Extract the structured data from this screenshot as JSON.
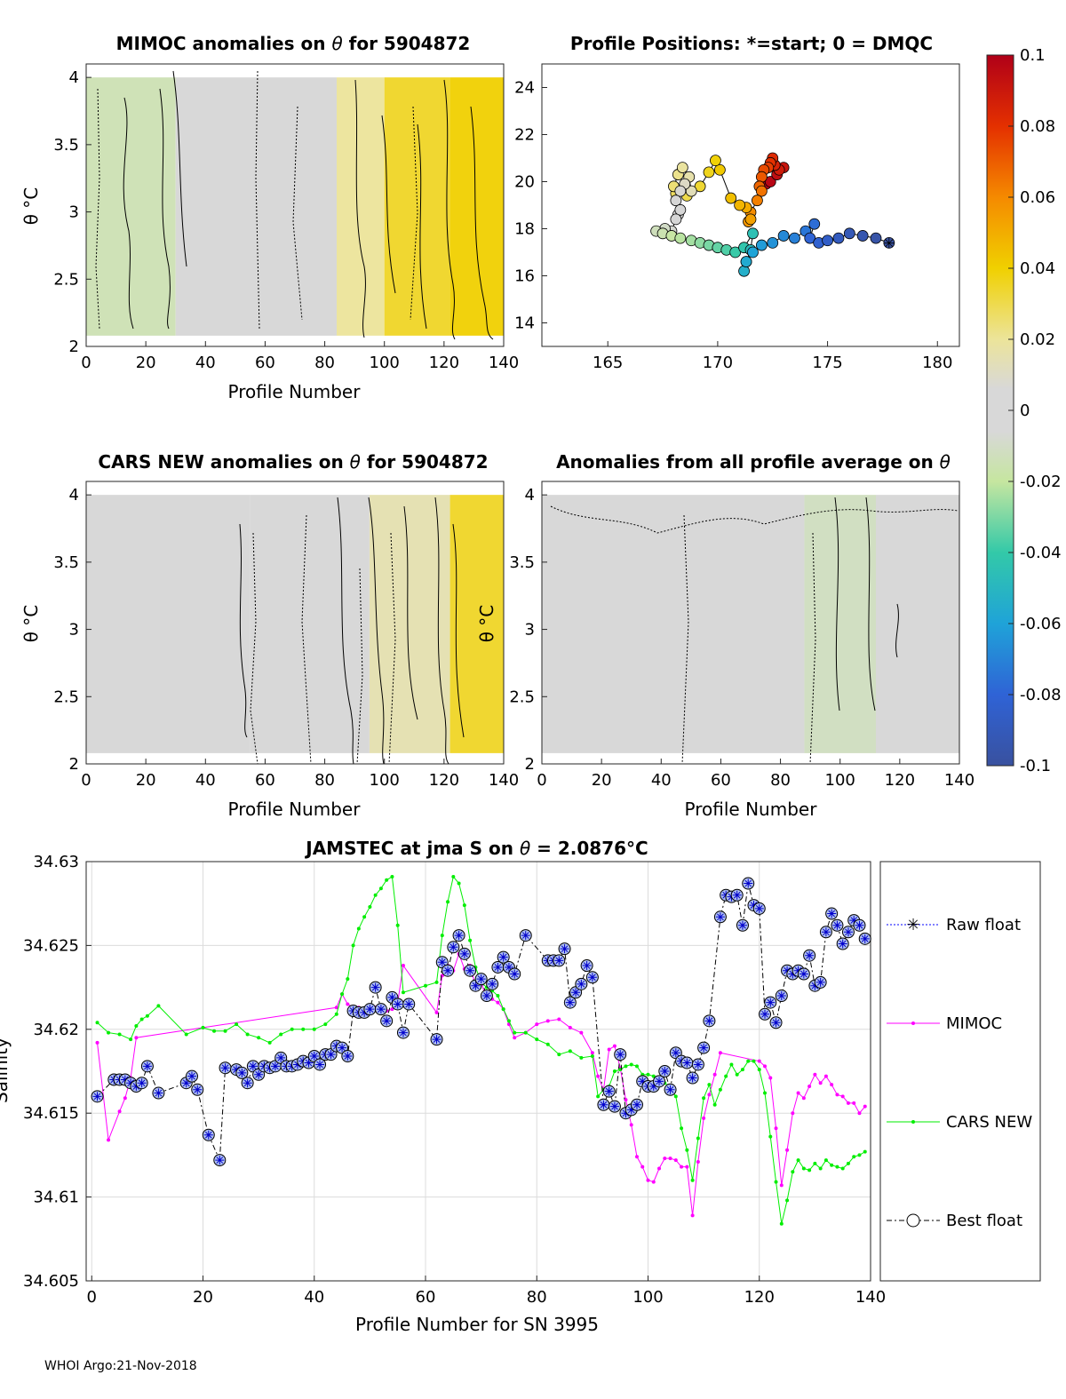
{
  "page": {
    "footer": "WHOI Argo:21-Nov-2018"
  },
  "panels": {
    "mimoc": {
      "title_pre": "MIMOC anomalies on",
      "title_sym": "θ",
      "title_post": "for 5904872",
      "ylabel": "θ °C",
      "xlabel": "Profile Number"
    },
    "positions": {
      "title": "Profile Positions: *=start; 0 = DMQC"
    },
    "cars": {
      "title_pre": "CARS NEW anomalies on",
      "title_sym": "θ",
      "title_post": "for 5904872",
      "ylabel": "θ °C",
      "xlabel": "Profile Number"
    },
    "allprof": {
      "title_pre": "Anomalies from all profile average on",
      "title_sym": "θ",
      "ylabel": "θ °C",
      "xlabel": "Profile Number"
    },
    "salinity": {
      "title_pre": "JAMSTEC at jma S on",
      "title_sym": "θ",
      "title_post": "= 2.0876°C",
      "ylabel": "Salinity",
      "xlabel": "Profile Number for SN 3995"
    }
  },
  "colorbar": {
    "ticks": [
      "0.1",
      "0.08",
      "0.06",
      "0.04",
      "0.02",
      "0",
      "-0.02",
      "-0.04",
      "-0.06",
      "-0.08",
      "-0.1"
    ],
    "min": -0.1,
    "max": 0.1
  },
  "legend": {
    "raw": "Raw float",
    "mimoc": "MIMOC",
    "cars": "CARS NEW",
    "best": "Best float"
  },
  "colors": {
    "raw": "#0000ff",
    "mimoc": "#ff00ff",
    "cars": "#00ee00",
    "best": "#000000",
    "anom_bg": "#d6d6d6"
  },
  "chart_data": [
    {
      "type": "heatmap",
      "title": "MIMOC anomalies on θ for 5904872",
      "xlabel": "Profile Number",
      "ylabel": "θ °C",
      "xlim": [
        0,
        140
      ],
      "ylim": [
        2,
        4.1
      ],
      "xticks": [
        0,
        20,
        40,
        60,
        80,
        100,
        120,
        140
      ],
      "yticks": [
        2,
        2.5,
        3,
        3.5,
        4
      ],
      "bands": [
        {
          "x": [
            0,
            30
          ],
          "anomaly": -0.015
        },
        {
          "x": [
            30,
            84
          ],
          "anomaly": 0.0
        },
        {
          "x": [
            84,
            100
          ],
          "anomaly": 0.02
        },
        {
          "x": [
            100,
            122
          ],
          "anomaly": 0.035
        },
        {
          "x": [
            122,
            140
          ],
          "anomaly": 0.04
        }
      ]
    },
    {
      "type": "scatter",
      "title": "Profile Positions: *=start; 0 = DMQC",
      "xlim": [
        162,
        181
      ],
      "ylim": [
        13,
        25
      ],
      "xticks": [
        165,
        170,
        175,
        180
      ],
      "yticks": [
        14,
        16,
        18,
        20,
        22,
        24
      ],
      "lon": [
        177.8,
        177.2,
        176.6,
        176.0,
        175.5,
        175.0,
        174.6,
        174.2,
        174.4,
        174.0,
        173.5,
        173.0,
        172.5,
        172.0,
        171.6,
        171.3,
        171.2,
        171.3,
        171.5,
        171.6,
        171.2,
        170.8,
        170.4,
        170.0,
        169.6,
        169.2,
        168.8,
        168.3,
        167.9,
        167.5,
        167.2,
        167.6,
        167.9,
        168.1,
        168.3,
        168.2,
        168.1,
        168.3,
        168.5,
        168.8,
        168.7,
        168.4,
        168.2,
        168.0,
        168.1,
        168.6,
        169.2,
        169.6,
        169.9,
        170.1,
        170.6,
        171.0,
        171.3,
        171.5,
        171.4,
        171.5,
        171.8,
        172.0,
        171.9,
        172.0,
        172.1,
        172.3,
        172.4,
        172.5,
        172.6,
        172.8,
        173.0,
        172.7,
        172.4,
        172.2
      ],
      "lat": [
        17.4,
        17.6,
        17.7,
        17.8,
        17.6,
        17.5,
        17.4,
        17.6,
        18.2,
        17.9,
        17.6,
        17.7,
        17.4,
        17.3,
        17.0,
        16.6,
        16.2,
        16.6,
        17.1,
        17.8,
        17.2,
        17.0,
        17.1,
        17.2,
        17.3,
        17.4,
        17.5,
        17.6,
        17.7,
        17.8,
        17.9,
        18.0,
        17.9,
        18.4,
        18.8,
        18.6,
        19.2,
        19.6,
        19.9,
        19.6,
        20.2,
        20.6,
        20.3,
        19.8,
        19.5,
        19.4,
        19.8,
        20.4,
        20.9,
        20.5,
        19.3,
        19.0,
        18.9,
        18.4,
        18.3,
        18.7,
        19.2,
        19.6,
        19.8,
        20.2,
        20.5,
        20.6,
        20.8,
        21.0,
        20.7,
        20.5,
        20.6,
        20.3,
        20.0,
        19.9
      ]
    },
    {
      "type": "heatmap",
      "title": "CARS NEW anomalies on θ for 5904872",
      "xlabel": "Profile Number",
      "ylabel": "θ °C",
      "xlim": [
        0,
        140
      ],
      "ylim": [
        2,
        4.1
      ],
      "xticks": [
        0,
        20,
        40,
        60,
        80,
        100,
        120,
        140
      ],
      "yticks": [
        2,
        2.5,
        3,
        3.5,
        4
      ],
      "bands": [
        {
          "x": [
            0,
            55
          ],
          "anomaly": -0.005
        },
        {
          "x": [
            55,
            95
          ],
          "anomaly": 0.0
        },
        {
          "x": [
            95,
            122
          ],
          "anomaly": 0.015
        },
        {
          "x": [
            122,
            140
          ],
          "anomaly": 0.035
        }
      ]
    },
    {
      "type": "heatmap",
      "title": "Anomalies from all profile average on θ",
      "xlabel": "Profile Number",
      "ylabel": "θ °C",
      "xlim": [
        0,
        140
      ],
      "ylim": [
        2,
        4.1
      ],
      "xticks": [
        0,
        20,
        40,
        60,
        80,
        100,
        120,
        140
      ],
      "yticks": [
        2,
        2.5,
        3,
        3.5,
        4
      ],
      "bands": [
        {
          "x": [
            0,
            88
          ],
          "anomaly": 0.0
        },
        {
          "x": [
            88,
            112
          ],
          "anomaly": -0.012
        },
        {
          "x": [
            112,
            140
          ],
          "anomaly": 0.0
        }
      ]
    },
    {
      "type": "line",
      "title": "JAMSTEC at jma S on θ = 2.0876°C",
      "xlabel": "Profile Number for SN 3995",
      "ylabel": "Salinity",
      "xlim": [
        -1,
        140
      ],
      "ylim": [
        34.605,
        34.63
      ],
      "xticks": [
        0,
        20,
        40,
        60,
        80,
        100,
        120,
        140
      ],
      "yticks": [
        34.605,
        34.61,
        34.615,
        34.62,
        34.625,
        34.63
      ],
      "ytick_labels": [
        "34.605",
        "34.61",
        "34.615",
        "34.62",
        "34.625",
        "34.63"
      ],
      "series": [
        {
          "name": "Best float",
          "x": [
            1,
            4,
            5,
            6,
            7,
            8,
            9,
            10,
            12,
            17,
            18,
            19,
            21,
            23,
            24,
            26,
            27,
            28,
            29,
            30,
            31,
            32,
            33,
            34,
            35,
            36,
            37,
            38,
            39,
            40,
            41,
            42,
            43,
            44,
            45,
            46,
            47,
            48,
            49,
            50,
            51,
            52,
            53,
            54,
            55,
            56,
            57,
            62,
            63,
            64,
            65,
            66,
            67,
            68,
            69,
            70,
            71,
            72,
            73,
            74,
            75,
            76,
            78,
            82,
            83,
            84,
            85,
            86,
            87,
            88,
            89,
            90,
            92,
            93,
            94,
            95,
            96,
            97,
            98,
            99,
            100,
            101,
            102,
            103,
            104,
            105,
            106,
            107,
            108,
            109,
            110,
            111,
            113,
            114,
            115,
            116,
            117,
            118,
            119,
            120,
            121,
            122,
            123,
            124,
            125,
            126,
            127,
            128,
            129,
            130,
            131,
            132,
            133,
            134,
            135,
            136,
            137,
            138,
            139
          ],
          "y": [
            34.616,
            34.617,
            34.617,
            34.617,
            34.6168,
            34.6166,
            34.6168,
            34.6178,
            34.6162,
            34.6168,
            34.6172,
            34.6164,
            34.6137,
            34.6122,
            34.6177,
            34.6176,
            34.6174,
            34.6168,
            34.6178,
            34.6173,
            34.6178,
            34.6177,
            34.6178,
            34.6183,
            34.6178,
            34.6178,
            34.6179,
            34.6181,
            34.618,
            34.6184,
            34.6179,
            34.6185,
            34.6185,
            34.619,
            34.6189,
            34.6184,
            34.6211,
            34.621,
            34.621,
            34.6212,
            34.6225,
            34.6212,
            34.6205,
            34.6219,
            34.6215,
            34.6198,
            34.6215,
            34.6194,
            34.624,
            34.6235,
            34.6249,
            34.6256,
            34.6245,
            34.6235,
            34.6226,
            34.623,
            34.622,
            34.6227,
            34.6237,
            34.6243,
            34.6237,
            34.6233,
            34.6256,
            34.6241,
            34.6241,
            34.6241,
            34.6248,
            34.6216,
            34.6222,
            34.6227,
            34.6238,
            34.6231,
            34.6155,
            34.6163,
            34.6154,
            34.6185,
            34.615,
            34.6152,
            34.6155,
            34.6169,
            34.6166,
            34.6166,
            34.6169,
            34.6175,
            34.6164,
            34.6186,
            34.6181,
            34.618,
            34.6171,
            34.6179,
            34.6189,
            34.6205,
            34.6267,
            34.628,
            34.6279,
            34.628,
            34.6262,
            34.6287,
            34.6274,
            34.6272,
            34.6209,
            34.6216,
            34.6204,
            34.622,
            34.6235,
            34.6233,
            34.6235,
            34.6233,
            34.6244,
            34.6226,
            34.6228,
            34.6258,
            34.6269,
            34.6262,
            34.6251,
            34.6258,
            34.6265,
            34.6262,
            34.6254
          ]
        },
        {
          "name": "MIMOC",
          "x": [
            1,
            3,
            5,
            6,
            7,
            8,
            44,
            45,
            46,
            47,
            48,
            49,
            50,
            51,
            52,
            53,
            54,
            55,
            56,
            62,
            63,
            64,
            65,
            66,
            67,
            68,
            69,
            70,
            71,
            72,
            73,
            74,
            75,
            76,
            78,
            80,
            82,
            84,
            86,
            88,
            90,
            91,
            92,
            93,
            94,
            95,
            96,
            97,
            98,
            99,
            100,
            101,
            102,
            103,
            104,
            105,
            106,
            107,
            108,
            109,
            110,
            111,
            112,
            113,
            120,
            121,
            122,
            123,
            124,
            125,
            126,
            127,
            128,
            129,
            130,
            131,
            132,
            133,
            134,
            135,
            136,
            137,
            138,
            139
          ],
          "y": [
            34.6192,
            34.6134,
            34.6151,
            34.6159,
            34.6171,
            34.6195,
            34.6213,
            34.6221,
            34.6215,
            34.6213,
            34.6213,
            34.6211,
            34.6212,
            34.6213,
            34.6212,
            34.6211,
            34.6212,
            34.6216,
            34.6238,
            34.621,
            34.6232,
            34.6238,
            34.6235,
            34.6245,
            34.6236,
            34.6238,
            34.6226,
            34.6228,
            34.6218,
            34.6218,
            34.6216,
            34.6212,
            34.6203,
            34.6195,
            34.6198,
            34.6203,
            34.6205,
            34.6206,
            34.6201,
            34.6198,
            34.6186,
            34.6172,
            34.6164,
            34.6188,
            34.619,
            34.6177,
            34.6158,
            34.6143,
            34.6124,
            34.6118,
            34.611,
            34.6109,
            34.6117,
            34.6123,
            34.6123,
            34.6122,
            34.6118,
            34.6118,
            34.6089,
            34.6121,
            34.6147,
            34.6161,
            34.6173,
            34.6186,
            34.6181,
            34.6178,
            34.6171,
            34.6141,
            34.6107,
            34.6128,
            34.615,
            34.6162,
            34.6159,
            34.6166,
            34.6173,
            34.6168,
            34.6172,
            34.6167,
            34.6161,
            34.616,
            34.6156,
            34.6156,
            34.615,
            34.6154
          ]
        },
        {
          "name": "CARS NEW",
          "x": [
            1,
            3,
            5,
            7,
            8,
            9,
            10,
            12,
            17,
            20,
            22,
            24,
            26,
            28,
            30,
            32,
            34,
            36,
            38,
            40,
            42,
            44,
            45,
            46,
            47,
            48,
            49,
            50,
            51,
            52,
            53,
            54,
            55,
            56,
            60,
            62,
            63,
            64,
            65,
            66,
            67,
            68,
            69,
            70,
            71,
            72,
            73,
            74,
            75,
            76,
            78,
            80,
            82,
            84,
            86,
            88,
            90,
            91,
            92,
            93,
            94,
            95,
            96,
            97,
            98,
            99,
            100,
            101,
            102,
            103,
            104,
            105,
            106,
            107,
            108,
            109,
            110,
            111,
            112,
            113,
            114,
            115,
            116,
            117,
            118,
            119,
            120,
            121,
            122,
            123,
            124,
            125,
            126,
            127,
            128,
            129,
            130,
            131,
            132,
            133,
            134,
            135,
            136,
            137,
            138,
            139
          ],
          "y": [
            34.6204,
            34.6198,
            34.6197,
            34.6194,
            34.6202,
            34.6206,
            34.6208,
            34.6214,
            34.6197,
            34.6201,
            34.6199,
            34.6199,
            34.6203,
            34.6197,
            34.6195,
            34.6192,
            34.6197,
            34.62,
            34.62,
            34.62,
            34.6203,
            34.6209,
            34.6221,
            34.623,
            34.625,
            34.626,
            34.6267,
            34.6273,
            34.628,
            34.6284,
            34.6289,
            34.6291,
            34.6262,
            34.6222,
            34.6226,
            34.6228,
            34.6256,
            34.6276,
            34.6291,
            34.6287,
            34.6274,
            34.6253,
            34.6237,
            34.6228,
            34.6225,
            34.6223,
            34.622,
            34.6212,
            34.6205,
            34.6198,
            34.6198,
            34.6194,
            34.6191,
            34.6185,
            34.6187,
            34.6183,
            34.6184,
            34.616,
            34.6164,
            34.6166,
            34.6175,
            34.6176,
            34.6178,
            34.6179,
            34.6178,
            34.6173,
            34.6173,
            34.6172,
            34.6168,
            34.6168,
            34.6165,
            34.616,
            34.6141,
            34.6128,
            34.611,
            34.6135,
            34.6159,
            34.6167,
            34.6155,
            34.6164,
            34.6172,
            34.6179,
            34.6173,
            34.6176,
            34.6181,
            34.6181,
            34.6176,
            34.6162,
            34.6136,
            34.6109,
            34.6084,
            34.6098,
            34.6115,
            34.6122,
            34.6117,
            34.6116,
            34.612,
            34.6117,
            34.6122,
            34.6119,
            34.6118,
            34.6117,
            34.612,
            34.6124,
            34.6125,
            34.6127
          ]
        }
      ]
    }
  ]
}
